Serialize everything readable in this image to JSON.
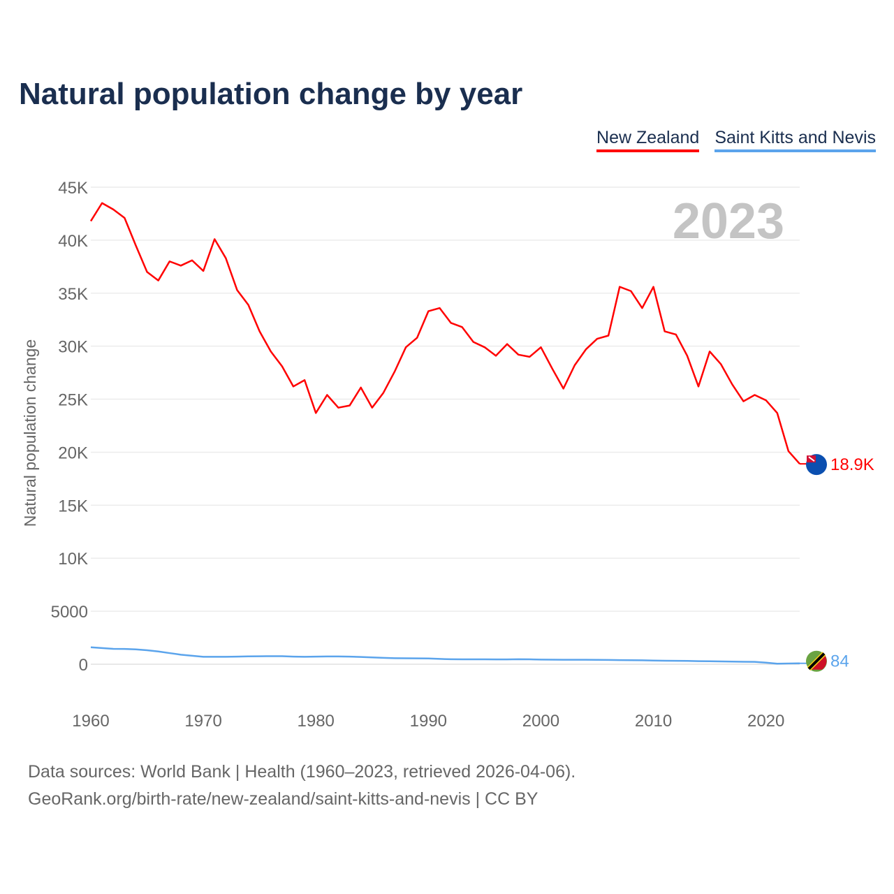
{
  "chart_data": {
    "type": "line",
    "title": "Natural population change by year",
    "xlabel": "",
    "ylabel": "Natural population change",
    "xlim": [
      1960,
      2023
    ],
    "ylim": [
      0,
      45000
    ],
    "year_watermark": "2023",
    "x_ticks": [
      "1960",
      "1970",
      "1980",
      "1990",
      "2000",
      "2010",
      "2020"
    ],
    "y_ticks": [
      {
        "value": 0,
        "label": "0"
      },
      {
        "value": 5000,
        "label": "5000"
      },
      {
        "value": 10000,
        "label": "10K"
      },
      {
        "value": 15000,
        "label": "15K"
      },
      {
        "value": 20000,
        "label": "20K"
      },
      {
        "value": 25000,
        "label": "25K"
      },
      {
        "value": 30000,
        "label": "30K"
      },
      {
        "value": 35000,
        "label": "35K"
      },
      {
        "value": 40000,
        "label": "40K"
      },
      {
        "value": 45000,
        "label": "45K"
      }
    ],
    "grid": true,
    "legend_position": "top-right",
    "series": [
      {
        "name": "New Zealand",
        "color": "#ff0000",
        "end_label": "18.9K",
        "values": [
          41800,
          43500,
          42900,
          42100,
          39500,
          37000,
          36200,
          38000,
          37600,
          38100,
          37100,
          40100,
          38300,
          35300,
          33900,
          31400,
          29500,
          28100,
          26200,
          26800,
          23700,
          25400,
          24200,
          24400,
          26100,
          24200,
          25600,
          27600,
          29900,
          30800,
          33300,
          33600,
          32200,
          31800,
          30400,
          29900,
          29100,
          30200,
          29200,
          29000,
          29900,
          27900,
          26000,
          28200,
          29700,
          30700,
          31000,
          35600,
          35200,
          33600,
          35600,
          31400,
          31100,
          29100,
          26200,
          29500,
          28300,
          26400,
          24800,
          25400,
          24900,
          23700,
          20100,
          18900
        ]
      },
      {
        "name": "Saint Kitts and Nevis",
        "color": "#5ba4ec",
        "end_label": "84",
        "values": [
          1600,
          1520,
          1450,
          1440,
          1400,
          1320,
          1200,
          1050,
          900,
          800,
          700,
          700,
          700,
          720,
          740,
          750,
          760,
          760,
          720,
          700,
          720,
          730,
          730,
          720,
          680,
          640,
          600,
          570,
          560,
          550,
          540,
          500,
          470,
          460,
          460,
          460,
          450,
          450,
          470,
          460,
          440,
          430,
          420,
          420,
          420,
          410,
          400,
          390,
          380,
          370,
          350,
          330,
          320,
          310,
          290,
          280,
          260,
          250,
          230,
          220,
          150,
          50,
          70,
          84
        ]
      }
    ],
    "footer": {
      "source": "Data sources: World Bank | Health (1960–2023, retrieved 2026-04-06).",
      "link": "GeoRank.org/birth-rate/new-zealand/saint-kitts-and-nevis | CC BY"
    }
  }
}
